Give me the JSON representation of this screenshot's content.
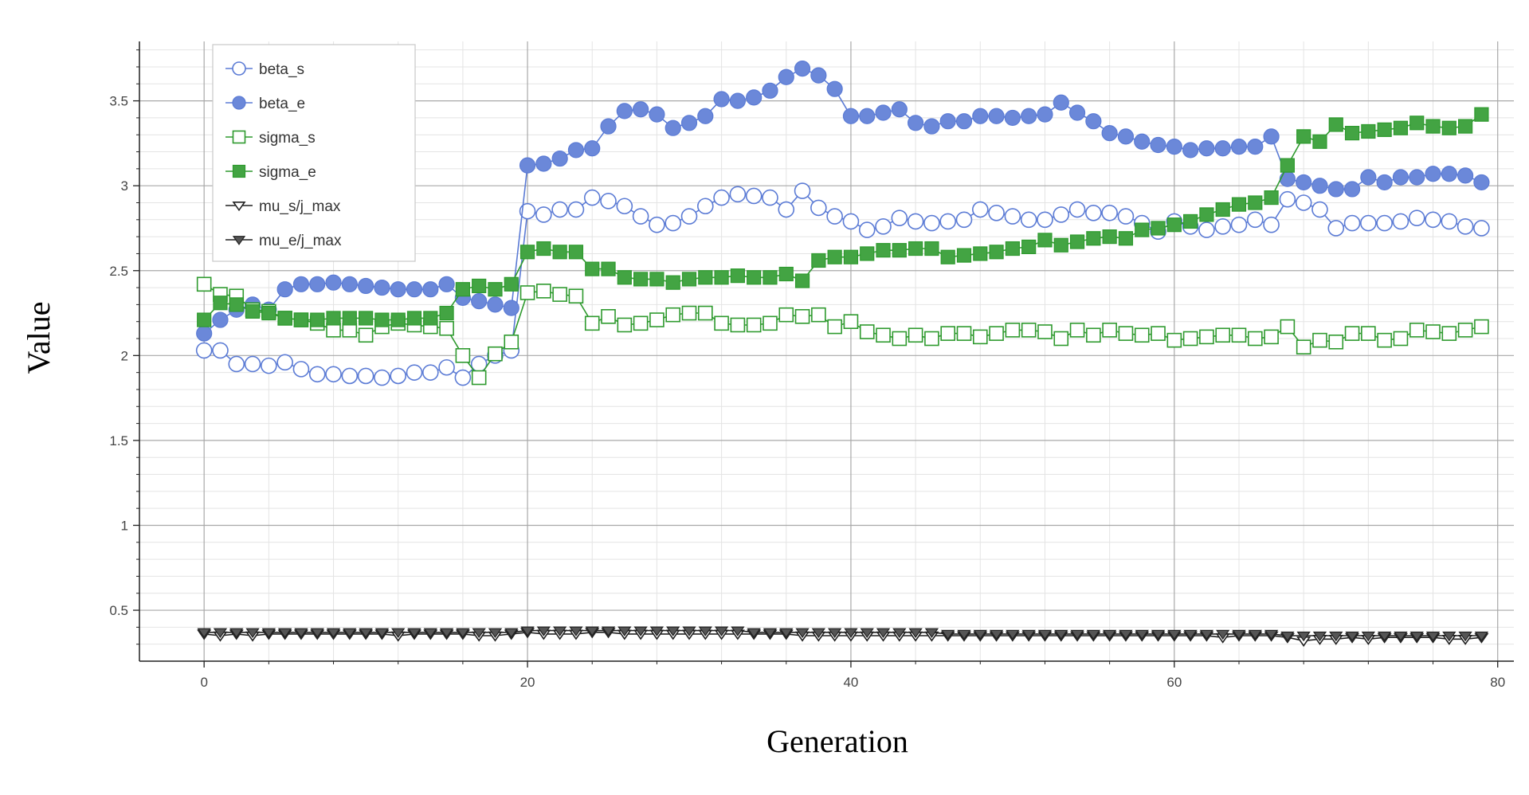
{
  "chart_data": {
    "type": "line",
    "xlabel": "Generation",
    "ylabel": "Value",
    "xlim": [
      -4,
      81
    ],
    "ylim": [
      0.2,
      3.85
    ],
    "x_ticks": [
      0,
      20,
      40,
      60,
      80
    ],
    "y_ticks": [
      0.5,
      1,
      1.5,
      2,
      2.5,
      3,
      3.5
    ],
    "x_tick_labels": [
      "0",
      "20",
      "40",
      "60",
      "80"
    ],
    "y_tick_labels": [
      "0.5",
      "1",
      "1.5",
      "2",
      "2.5",
      "3",
      "3.5"
    ],
    "grid": true,
    "legend_position": "top-left",
    "x": [
      0,
      1,
      2,
      3,
      4,
      5,
      6,
      7,
      8,
      9,
      10,
      11,
      12,
      13,
      14,
      15,
      16,
      17,
      18,
      19,
      20,
      21,
      22,
      23,
      24,
      25,
      26,
      27,
      28,
      29,
      30,
      31,
      32,
      33,
      34,
      35,
      36,
      37,
      38,
      39,
      40,
      41,
      42,
      43,
      44,
      45,
      46,
      47,
      48,
      49,
      50,
      51,
      52,
      53,
      54,
      55,
      56,
      57,
      58,
      59,
      60,
      61,
      62,
      63,
      64,
      65,
      66,
      67,
      68,
      69,
      70,
      71,
      72,
      73,
      74,
      75,
      76,
      77,
      78,
      79
    ],
    "series": [
      {
        "name": "beta_s",
        "color": "#5b7bd5",
        "marker": "circle",
        "filled": false,
        "values": [
          2.03,
          2.03,
          1.95,
          1.95,
          1.94,
          1.96,
          1.92,
          1.89,
          1.89,
          1.88,
          1.88,
          1.87,
          1.88,
          1.9,
          1.9,
          1.93,
          1.87,
          1.95,
          2.0,
          2.03,
          2.85,
          2.83,
          2.86,
          2.86,
          2.93,
          2.91,
          2.88,
          2.82,
          2.77,
          2.78,
          2.82,
          2.88,
          2.93,
          2.95,
          2.94,
          2.93,
          2.86,
          2.97,
          2.87,
          2.82,
          2.79,
          2.74,
          2.76,
          2.81,
          2.79,
          2.78,
          2.79,
          2.8,
          2.86,
          2.84,
          2.82,
          2.8,
          2.8,
          2.83,
          2.86,
          2.84,
          2.84,
          2.82,
          2.78,
          2.73,
          2.79,
          2.76,
          2.74,
          2.76,
          2.77,
          2.8,
          2.77,
          2.92,
          2.9,
          2.86,
          2.75,
          2.78,
          2.78,
          2.78,
          2.79,
          2.81,
          2.8,
          2.79,
          2.76,
          2.75
        ]
      },
      {
        "name": "beta_e",
        "color": "#5b7bd5",
        "marker": "circle",
        "filled": true,
        "values": [
          2.13,
          2.21,
          2.27,
          2.3,
          2.27,
          2.39,
          2.42,
          2.42,
          2.43,
          2.42,
          2.41,
          2.4,
          2.39,
          2.39,
          2.39,
          2.42,
          2.34,
          2.32,
          2.3,
          2.28,
          3.12,
          3.13,
          3.16,
          3.21,
          3.22,
          3.35,
          3.44,
          3.45,
          3.42,
          3.34,
          3.37,
          3.41,
          3.51,
          3.5,
          3.52,
          3.56,
          3.64,
          3.69,
          3.65,
          3.57,
          3.41,
          3.41,
          3.43,
          3.45,
          3.37,
          3.35,
          3.38,
          3.38,
          3.41,
          3.41,
          3.4,
          3.41,
          3.42,
          3.49,
          3.43,
          3.38,
          3.31,
          3.29,
          3.26,
          3.24,
          3.23,
          3.21,
          3.22,
          3.22,
          3.23,
          3.23,
          3.29,
          3.04,
          3.02,
          3.0,
          2.98,
          2.98,
          3.05,
          3.02,
          3.05,
          3.05,
          3.07,
          3.07,
          3.06,
          3.02
        ]
      },
      {
        "name": "sigma_s",
        "color": "#2e9a2e",
        "marker": "square",
        "filled": false,
        "values": [
          2.42,
          2.36,
          2.35,
          2.27,
          2.26,
          2.22,
          2.21,
          2.19,
          2.15,
          2.15,
          2.12,
          2.17,
          2.19,
          2.18,
          2.17,
          2.16,
          2.0,
          1.87,
          2.01,
          2.08,
          2.37,
          2.38,
          2.36,
          2.35,
          2.19,
          2.23,
          2.18,
          2.19,
          2.21,
          2.24,
          2.25,
          2.25,
          2.19,
          2.18,
          2.18,
          2.19,
          2.24,
          2.23,
          2.24,
          2.17,
          2.2,
          2.14,
          2.12,
          2.1,
          2.12,
          2.1,
          2.13,
          2.13,
          2.11,
          2.13,
          2.15,
          2.15,
          2.14,
          2.1,
          2.15,
          2.12,
          2.15,
          2.13,
          2.12,
          2.13,
          2.09,
          2.1,
          2.11,
          2.12,
          2.12,
          2.1,
          2.11,
          2.17,
          2.05,
          2.09,
          2.08,
          2.13,
          2.13,
          2.09,
          2.1,
          2.15,
          2.14,
          2.13,
          2.15,
          2.17
        ]
      },
      {
        "name": "sigma_e",
        "color": "#2e9a2e",
        "marker": "square",
        "filled": true,
        "values": [
          2.21,
          2.31,
          2.3,
          2.26,
          2.25,
          2.22,
          2.21,
          2.21,
          2.22,
          2.22,
          2.22,
          2.21,
          2.21,
          2.22,
          2.22,
          2.25,
          2.39,
          2.41,
          2.39,
          2.42,
          2.61,
          2.63,
          2.61,
          2.61,
          2.51,
          2.51,
          2.46,
          2.45,
          2.45,
          2.43,
          2.45,
          2.46,
          2.46,
          2.47,
          2.46,
          2.46,
          2.48,
          2.44,
          2.56,
          2.58,
          2.58,
          2.6,
          2.62,
          2.62,
          2.63,
          2.63,
          2.58,
          2.59,
          2.6,
          2.61,
          2.63,
          2.64,
          2.68,
          2.65,
          2.67,
          2.69,
          2.7,
          2.69,
          2.74,
          2.75,
          2.77,
          2.79,
          2.83,
          2.86,
          2.89,
          2.9,
          2.93,
          3.12,
          3.29,
          3.26,
          3.36,
          3.31,
          3.32,
          3.33,
          3.34,
          3.37,
          3.35,
          3.34,
          3.35,
          3.42
        ]
      },
      {
        "name": "mu_s/j_max",
        "color": "#222222",
        "marker": "triangle-down",
        "filled": false,
        "values": [
          0.36,
          0.35,
          0.36,
          0.35,
          0.36,
          0.36,
          0.36,
          0.36,
          0.36,
          0.36,
          0.36,
          0.36,
          0.35,
          0.36,
          0.36,
          0.36,
          0.36,
          0.35,
          0.35,
          0.36,
          0.37,
          0.36,
          0.36,
          0.36,
          0.37,
          0.37,
          0.36,
          0.36,
          0.36,
          0.36,
          0.36,
          0.36,
          0.36,
          0.36,
          0.36,
          0.36,
          0.36,
          0.35,
          0.35,
          0.35,
          0.35,
          0.35,
          0.35,
          0.35,
          0.35,
          0.35,
          0.35,
          0.35,
          0.35,
          0.35,
          0.35,
          0.35,
          0.35,
          0.35,
          0.35,
          0.35,
          0.35,
          0.35,
          0.35,
          0.35,
          0.35,
          0.35,
          0.35,
          0.34,
          0.35,
          0.35,
          0.35,
          0.34,
          0.32,
          0.33,
          0.33,
          0.34,
          0.33,
          0.34,
          0.34,
          0.34,
          0.34,
          0.33,
          0.33,
          0.34
        ]
      },
      {
        "name": "mu_e/j_max",
        "color": "#222222",
        "marker": "triangle-down",
        "filled": true,
        "values": [
          0.37,
          0.37,
          0.37,
          0.37,
          0.37,
          0.37,
          0.37,
          0.37,
          0.37,
          0.37,
          0.37,
          0.37,
          0.37,
          0.37,
          0.37,
          0.37,
          0.37,
          0.37,
          0.37,
          0.37,
          0.38,
          0.38,
          0.38,
          0.38,
          0.38,
          0.38,
          0.38,
          0.38,
          0.38,
          0.38,
          0.38,
          0.38,
          0.38,
          0.38,
          0.37,
          0.37,
          0.37,
          0.37,
          0.37,
          0.37,
          0.37,
          0.37,
          0.37,
          0.37,
          0.37,
          0.37,
          0.36,
          0.36,
          0.36,
          0.36,
          0.36,
          0.36,
          0.36,
          0.36,
          0.36,
          0.36,
          0.36,
          0.36,
          0.36,
          0.36,
          0.36,
          0.36,
          0.36,
          0.36,
          0.36,
          0.36,
          0.36,
          0.35,
          0.35,
          0.35,
          0.35,
          0.35,
          0.35,
          0.35,
          0.35,
          0.35,
          0.35,
          0.35,
          0.35,
          0.35
        ]
      }
    ]
  }
}
